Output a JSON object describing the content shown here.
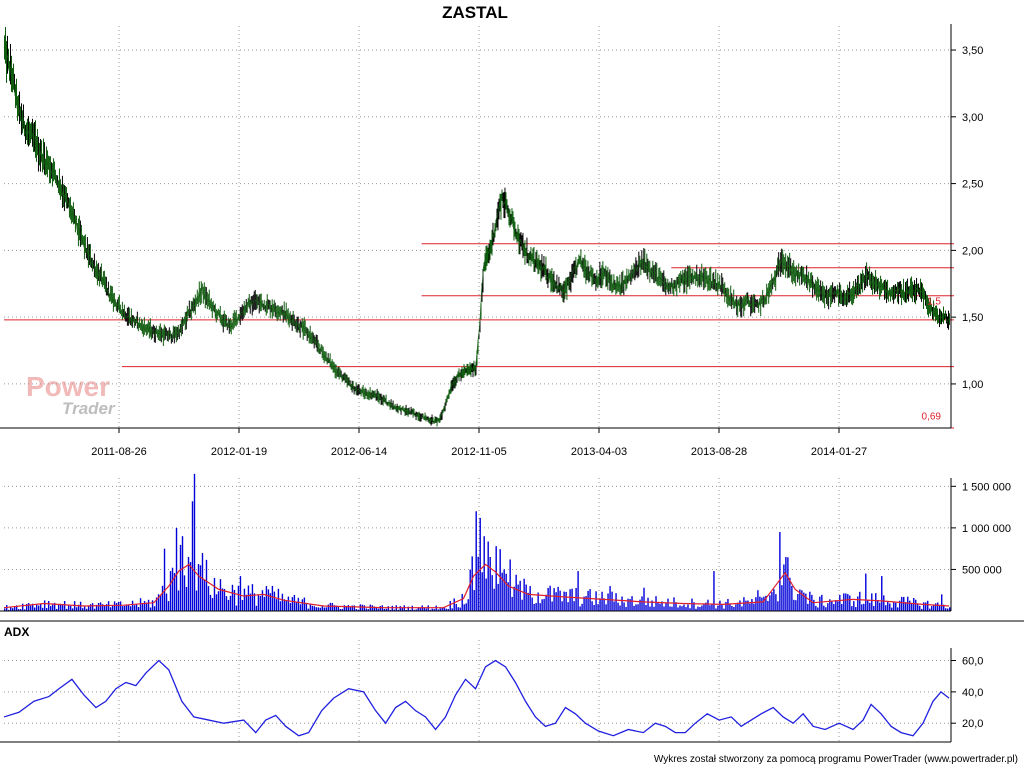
{
  "chart_data": [
    {
      "type": "candlestick",
      "title": "ZASTAL",
      "x_tick_labels": [
        "2011-08-26",
        "2012-01-19",
        "2012-06-14",
        "2012-11-05",
        "2013-04-03",
        "2013-08-28",
        "2014-01-27"
      ],
      "y_tick_labels": [
        "3,50",
        "3,00",
        "2,50",
        "2,00",
        "1,50",
        "1,00"
      ],
      "y_ticks": [
        3.5,
        3.0,
        2.5,
        2.0,
        1.5,
        1.0
      ],
      "ylim": [
        0.67,
        3.65
      ],
      "grid": true,
      "price_path": [
        [
          0,
          3.5
        ],
        [
          8,
          3.3
        ],
        [
          14,
          3.05
        ],
        [
          22,
          2.9
        ],
        [
          30,
          2.82
        ],
        [
          38,
          2.7
        ],
        [
          48,
          2.6
        ],
        [
          58,
          2.45
        ],
        [
          66,
          2.3
        ],
        [
          74,
          2.15
        ],
        [
          82,
          2.0
        ],
        [
          90,
          1.88
        ],
        [
          98,
          1.78
        ],
        [
          106,
          1.66
        ],
        [
          114,
          1.58
        ],
        [
          122,
          1.52
        ],
        [
          130,
          1.47
        ],
        [
          140,
          1.42
        ],
        [
          150,
          1.39
        ],
        [
          160,
          1.37
        ],
        [
          168,
          1.36
        ],
        [
          176,
          1.4
        ],
        [
          184,
          1.52
        ],
        [
          192,
          1.62
        ],
        [
          198,
          1.7
        ],
        [
          204,
          1.62
        ],
        [
          210,
          1.55
        ],
        [
          218,
          1.48
        ],
        [
          226,
          1.43
        ],
        [
          234,
          1.5
        ],
        [
          242,
          1.58
        ],
        [
          250,
          1.62
        ],
        [
          258,
          1.6
        ],
        [
          266,
          1.58
        ],
        [
          274,
          1.55
        ],
        [
          282,
          1.52
        ],
        [
          290,
          1.47
        ],
        [
          298,
          1.42
        ],
        [
          306,
          1.36
        ],
        [
          314,
          1.28
        ],
        [
          322,
          1.2
        ],
        [
          330,
          1.12
        ],
        [
          340,
          1.04
        ],
        [
          350,
          0.97
        ],
        [
          360,
          0.93
        ],
        [
          370,
          0.92
        ],
        [
          380,
          0.88
        ],
        [
          390,
          0.83
        ],
        [
          400,
          0.8
        ],
        [
          410,
          0.78
        ],
        [
          420,
          0.75
        ],
        [
          430,
          0.72
        ],
        [
          436,
          0.73
        ],
        [
          442,
          0.86
        ],
        [
          448,
          1.0
        ],
        [
          456,
          1.07
        ],
        [
          464,
          1.1
        ],
        [
          472,
          1.12
        ],
        [
          476,
          1.45
        ],
        [
          480,
          1.88
        ],
        [
          486,
          2.0
        ],
        [
          492,
          2.2
        ],
        [
          498,
          2.4
        ],
        [
          504,
          2.3
        ],
        [
          512,
          2.15
        ],
        [
          520,
          2.0
        ],
        [
          528,
          1.93
        ],
        [
          536,
          1.88
        ],
        [
          544,
          1.82
        ],
        [
          552,
          1.75
        ],
        [
          560,
          1.68
        ],
        [
          568,
          1.8
        ],
        [
          576,
          1.92
        ],
        [
          584,
          1.85
        ],
        [
          592,
          1.78
        ],
        [
          600,
          1.82
        ],
        [
          608,
          1.75
        ],
        [
          616,
          1.72
        ],
        [
          624,
          1.78
        ],
        [
          632,
          1.85
        ],
        [
          640,
          1.92
        ],
        [
          648,
          1.85
        ],
        [
          656,
          1.78
        ],
        [
          664,
          1.72
        ],
        [
          672,
          1.75
        ],
        [
          680,
          1.78
        ],
        [
          688,
          1.8
        ],
        [
          696,
          1.8
        ],
        [
          704,
          1.78
        ],
        [
          712,
          1.76
        ],
        [
          720,
          1.72
        ],
        [
          728,
          1.62
        ],
        [
          736,
          1.58
        ],
        [
          744,
          1.62
        ],
        [
          752,
          1.58
        ],
        [
          760,
          1.62
        ],
        [
          766,
          1.7
        ],
        [
          772,
          1.8
        ],
        [
          778,
          1.95
        ],
        [
          784,
          1.88
        ],
        [
          792,
          1.82
        ],
        [
          800,
          1.8
        ],
        [
          808,
          1.75
        ],
        [
          816,
          1.68
        ],
        [
          824,
          1.65
        ],
        [
          832,
          1.7
        ],
        [
          840,
          1.62
        ],
        [
          848,
          1.68
        ],
        [
          856,
          1.72
        ],
        [
          864,
          1.82
        ],
        [
          870,
          1.75
        ],
        [
          878,
          1.72
        ],
        [
          886,
          1.68
        ],
        [
          894,
          1.7
        ],
        [
          902,
          1.68
        ],
        [
          910,
          1.7
        ],
        [
          918,
          1.68
        ],
        [
          926,
          1.58
        ],
        [
          934,
          1.5
        ],
        [
          940,
          1.5
        ],
        [
          946,
          1.48
        ]
      ],
      "horizontal_lines": [
        {
          "value": 2.05,
          "x_range": [
            418,
            948
          ]
        },
        {
          "value": 1.87,
          "x_range": [
            668,
            948
          ]
        },
        {
          "value": 1.66,
          "x_range": [
            418,
            948
          ]
        },
        {
          "value": 1.48,
          "x_range": [
            0,
            948
          ]
        },
        {
          "value": 1.13,
          "x_range": [
            118,
            948
          ]
        },
        {
          "value": 0.67,
          "x_range": [
            0,
            948
          ]
        }
      ],
      "price_labels": [
        {
          "text": "0,69",
          "value": 0.69
        },
        {
          "text": "1,5",
          "value": 1.55
        }
      ]
    },
    {
      "type": "bar",
      "y_tick_labels": [
        "1 500 000",
        "1 000 000",
        "500 000"
      ],
      "y_ticks": [
        1500000,
        1000000,
        500000
      ],
      "ylim": [
        0,
        1600000
      ],
      "spikes": [
        [
          160,
          750000
        ],
        [
          166,
          480000
        ],
        [
          172,
          1000000
        ],
        [
          178,
          900000
        ],
        [
          184,
          650000
        ],
        [
          188,
          1320000
        ],
        [
          190,
          1650000
        ],
        [
          196,
          550000
        ],
        [
          236,
          420000
        ],
        [
          262,
          300000
        ],
        [
          472,
          1200000
        ],
        [
          476,
          1120000
        ],
        [
          480,
          900000
        ],
        [
          486,
          650000
        ],
        [
          492,
          780000
        ],
        [
          500,
          500000
        ],
        [
          506,
          620000
        ],
        [
          526,
          300000
        ],
        [
          574,
          480000
        ],
        [
          606,
          300000
        ],
        [
          640,
          280000
        ],
        [
          710,
          480000
        ],
        [
          754,
          250000
        ],
        [
          776,
          950000
        ],
        [
          780,
          560000
        ],
        [
          786,
          400000
        ],
        [
          862,
          450000
        ],
        [
          878,
          420000
        ],
        [
          938,
          200000
        ]
      ],
      "average_path": [
        [
          0,
          40000
        ],
        [
          40,
          90000
        ],
        [
          80,
          60000
        ],
        [
          120,
          70000
        ],
        [
          150,
          100000
        ],
        [
          165,
          300000
        ],
        [
          175,
          480000
        ],
        [
          185,
          560000
        ],
        [
          195,
          420000
        ],
        [
          215,
          260000
        ],
        [
          240,
          180000
        ],
        [
          260,
          200000
        ],
        [
          280,
          130000
        ],
        [
          320,
          60000
        ],
        [
          380,
          40000
        ],
        [
          440,
          40000
        ],
        [
          460,
          150000
        ],
        [
          470,
          420000
        ],
        [
          482,
          560000
        ],
        [
          492,
          470000
        ],
        [
          505,
          300000
        ],
        [
          525,
          200000
        ],
        [
          560,
          170000
        ],
        [
          600,
          140000
        ],
        [
          640,
          110000
        ],
        [
          680,
          90000
        ],
        [
          720,
          80000
        ],
        [
          760,
          110000
        ],
        [
          772,
          300000
        ],
        [
          782,
          460000
        ],
        [
          792,
          260000
        ],
        [
          810,
          100000
        ],
        [
          850,
          140000
        ],
        [
          880,
          120000
        ],
        [
          920,
          80000
        ],
        [
          946,
          60000
        ]
      ]
    },
    {
      "type": "line",
      "title": "ADX",
      "y_tick_labels": [
        "60,0",
        "40,0",
        "20,0"
      ],
      "y_ticks": [
        60,
        40,
        20
      ],
      "ylim": [
        8,
        68
      ],
      "series": [
        {
          "values": [
            [
              0,
              24
            ],
            [
              15,
              27
            ],
            [
              30,
              34
            ],
            [
              45,
              37
            ],
            [
              55,
              42
            ],
            [
              68,
              48
            ],
            [
              80,
              38
            ],
            [
              92,
              30
            ],
            [
              102,
              34
            ],
            [
              112,
              42
            ],
            [
              122,
              46
            ],
            [
              132,
              44
            ],
            [
              142,
              52
            ],
            [
              155,
              60
            ],
            [
              165,
              54
            ],
            [
              178,
              34
            ],
            [
              190,
              24
            ],
            [
              205,
              22
            ],
            [
              220,
              20
            ],
            [
              240,
              22
            ],
            [
              252,
              14
            ],
            [
              262,
              22
            ],
            [
              272,
              25
            ],
            [
              282,
              18
            ],
            [
              295,
              12
            ],
            [
              305,
              14
            ],
            [
              318,
              28
            ],
            [
              330,
              36
            ],
            [
              345,
              42
            ],
            [
              360,
              40
            ],
            [
              372,
              28
            ],
            [
              382,
              20
            ],
            [
              392,
              30
            ],
            [
              402,
              34
            ],
            [
              412,
              28
            ],
            [
              422,
              24
            ],
            [
              432,
              16
            ],
            [
              442,
              24
            ],
            [
              452,
              38
            ],
            [
              462,
              48
            ],
            [
              472,
              42
            ],
            [
              482,
              56
            ],
            [
              492,
              60
            ],
            [
              502,
              56
            ],
            [
              512,
              46
            ],
            [
              522,
              34
            ],
            [
              532,
              24
            ],
            [
              542,
              18
            ],
            [
              552,
              20
            ],
            [
              562,
              30
            ],
            [
              572,
              26
            ],
            [
              582,
              20
            ],
            [
              595,
              15
            ],
            [
              610,
              12
            ],
            [
              625,
              16
            ],
            [
              640,
              14
            ],
            [
              652,
              20
            ],
            [
              662,
              18
            ],
            [
              672,
              14
            ],
            [
              682,
              14
            ],
            [
              692,
              20
            ],
            [
              704,
              26
            ],
            [
              716,
              22
            ],
            [
              728,
              24
            ],
            [
              738,
              18
            ],
            [
              748,
              22
            ],
            [
              758,
              26
            ],
            [
              770,
              30
            ],
            [
              780,
              24
            ],
            [
              790,
              20
            ],
            [
              800,
              26
            ],
            [
              810,
              18
            ],
            [
              822,
              16
            ],
            [
              836,
              20
            ],
            [
              850,
              16
            ],
            [
              860,
              22
            ],
            [
              868,
              32
            ],
            [
              878,
              26
            ],
            [
              888,
              18
            ],
            [
              898,
              14
            ],
            [
              910,
              12
            ],
            [
              920,
              20
            ],
            [
              930,
              34
            ],
            [
              938,
              40
            ],
            [
              946,
              36
            ]
          ]
        }
      ]
    }
  ],
  "watermark": {
    "line1": "Power",
    "line2": "Trader"
  },
  "footer": {
    "credit": "Wykres został stworzony za pomocą programu PowerTrader (www.powertrader.pl)"
  },
  "colors": {
    "price": "#0f5c0f",
    "price_line": "#000000",
    "resistance": "#e0202a",
    "volume": "#0000d8",
    "volume_avg": "#e0202a",
    "adx": "#2020e0"
  }
}
